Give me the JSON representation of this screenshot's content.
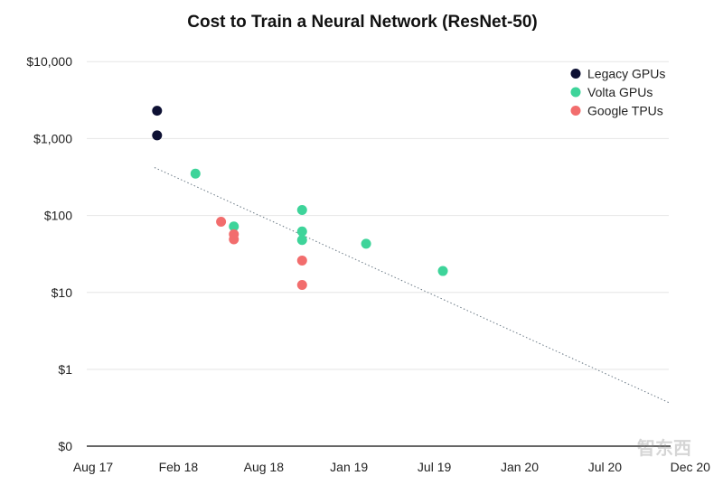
{
  "chart_data": {
    "type": "scatter",
    "title": "Cost to Train a Neural Network (ResNet-50)",
    "xlabel": "",
    "ylabel": "",
    "y_scale": "log",
    "y_ticks": [
      {
        "value": 0,
        "label": "$0"
      },
      {
        "value": 1,
        "label": "$1"
      },
      {
        "value": 10,
        "label": "$10"
      },
      {
        "value": 100,
        "label": "$100"
      },
      {
        "value": 1000,
        "label": "$1,000"
      },
      {
        "value": 10000,
        "label": "$10,000"
      }
    ],
    "x_ticks": [
      "Aug 17",
      "Feb 18",
      "Aug 18",
      "Jan 19",
      "Jul 19",
      "Jan 20",
      "Jul 20",
      "Dec 20"
    ],
    "x_tick_positions": [
      0,
      1,
      2,
      3,
      4,
      5,
      6,
      7
    ],
    "series": [
      {
        "name": "Legacy GPUs",
        "color": "#0d1033",
        "points": [
          {
            "x": 0.75,
            "y": 2300
          },
          {
            "x": 0.75,
            "y": 1100
          }
        ]
      },
      {
        "name": "Volta GPUs",
        "color": "#3ed49a",
        "points": [
          {
            "x": 1.2,
            "y": 350
          },
          {
            "x": 1.65,
            "y": 72
          },
          {
            "x": 2.45,
            "y": 118
          },
          {
            "x": 2.45,
            "y": 62
          },
          {
            "x": 2.45,
            "y": 48
          },
          {
            "x": 3.2,
            "y": 43
          },
          {
            "x": 4.1,
            "y": 19
          }
        ]
      },
      {
        "name": "Google TPUs",
        "color": "#f26d6d",
        "points": [
          {
            "x": 1.5,
            "y": 83
          },
          {
            "x": 1.65,
            "y": 57
          },
          {
            "x": 1.65,
            "y": 49
          },
          {
            "x": 2.45,
            "y": 26
          },
          {
            "x": 2.45,
            "y": 12.5
          }
        ]
      }
    ],
    "trendline": {
      "start": {
        "x": 0.72,
        "y": 420
      },
      "end": {
        "x": 6.75,
        "y": 0.37
      }
    },
    "legend_position": "top-right",
    "grid": true
  },
  "watermark": "智东西"
}
